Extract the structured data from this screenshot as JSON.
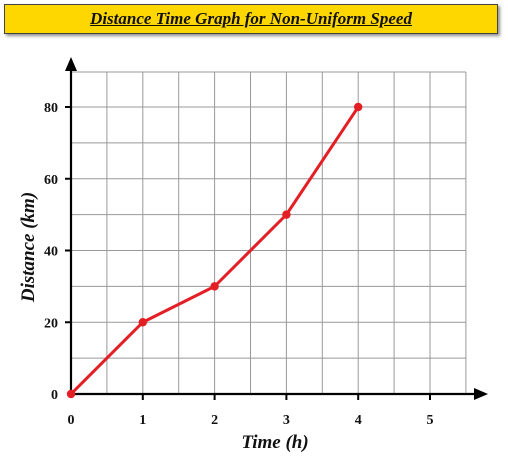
{
  "title": "Distance Time Graph for Non-Uniform Speed",
  "colors": {
    "banner": "#ffd700",
    "series": "#e31e24",
    "grid": "#999999",
    "axis": "#000000"
  },
  "chart_data": {
    "type": "line",
    "title": "Distance Time Graph for Non-Uniform Speed",
    "xlabel": "Time (h)",
    "ylabel": "Distance (km)",
    "xlim": [
      0,
      5.5
    ],
    "ylim": [
      0,
      80
    ],
    "grid": true,
    "x_ticks": [
      0,
      1,
      2,
      3,
      4,
      5
    ],
    "y_ticks": [
      0,
      20,
      40,
      60,
      80
    ],
    "x_tick_labels": [
      "0",
      "1",
      "2",
      "3",
      "4",
      "5"
    ],
    "y_tick_labels": [
      "0",
      "20",
      "40",
      "60",
      "80"
    ],
    "series": [
      {
        "x": [
          0,
          1,
          2,
          3,
          4
        ],
        "values": [
          0,
          20,
          30,
          50,
          80
        ]
      }
    ]
  }
}
